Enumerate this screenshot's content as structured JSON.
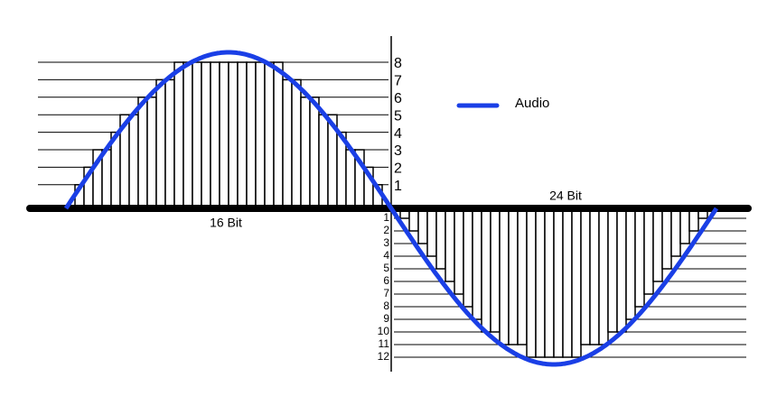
{
  "legend": {
    "label": "Audio"
  },
  "captions": {
    "left": "16 Bit",
    "right": "24 Bit"
  },
  "upper_levels": [
    "1",
    "2",
    "3",
    "4",
    "5",
    "6",
    "7",
    "8"
  ],
  "lower_levels": [
    "1",
    "2",
    "3",
    "4",
    "5",
    "6",
    "7",
    "8",
    "9",
    "10",
    "11",
    "12"
  ]
}
